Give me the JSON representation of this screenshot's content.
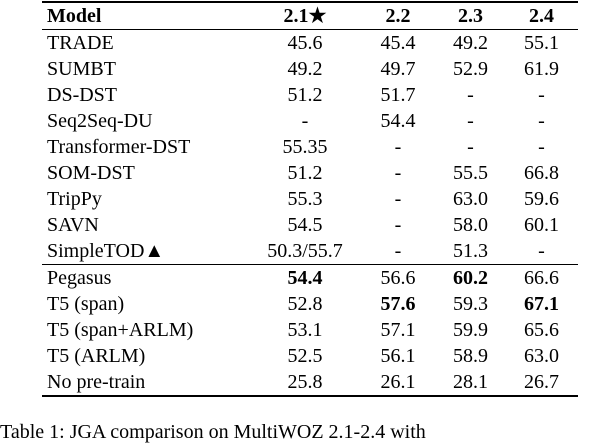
{
  "table": {
    "header": [
      "Model",
      "2.1★",
      "2.2",
      "2.3",
      "2.4"
    ],
    "groups": [
      [
        [
          "TRADE",
          "45.6",
          "45.4",
          "49.2",
          "55.1"
        ],
        [
          "SUMBT",
          "49.2",
          "49.7",
          "52.9",
          "61.9"
        ],
        [
          "DS-DST",
          "51.2",
          "51.7",
          "-",
          "-"
        ],
        [
          "Seq2Seq-DU",
          "-",
          "54.4",
          "-",
          "-"
        ],
        [
          "Transformer-DST",
          "55.35",
          "-",
          "-",
          "-"
        ],
        [
          "SOM-DST",
          "51.2",
          "-",
          "55.5",
          "66.8"
        ],
        [
          "TripPy",
          "55.3",
          "-",
          "63.0",
          "59.6"
        ],
        [
          "SAVN",
          "54.5",
          "-",
          "58.0",
          "60.1"
        ],
        [
          "SimpleTOD▲",
          "50.3/55.7",
          "-",
          "51.3",
          "-"
        ]
      ],
      [
        [
          "Pegasus",
          "54.4",
          "56.6",
          "60.2",
          "66.6"
        ],
        [
          "T5 (span)",
          "52.8",
          "57.6",
          "59.3",
          "67.1"
        ],
        [
          "T5 (span+ARLM)",
          "53.1",
          "57.1",
          "59.9",
          "65.6"
        ],
        [
          "T5 (ARLM)",
          "52.5",
          "56.1",
          "58.9",
          "63.0"
        ],
        [
          "No pre-train",
          "25.8",
          "26.1",
          "28.1",
          "26.7"
        ]
      ]
    ],
    "bold": [
      "1.0.1",
      "1.0.3",
      "1.1.2",
      "1.1.4"
    ]
  },
  "caption": "Table 1: JGA comparison on MultiWOZ 2.1-2.4 with"
}
